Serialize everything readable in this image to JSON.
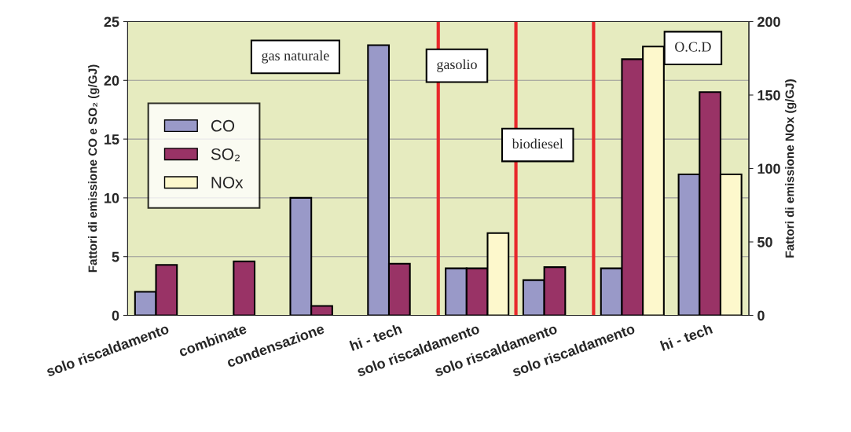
{
  "chart_data": {
    "type": "bar",
    "categories": [
      "solo riscaldamento",
      "combinate",
      "condensazione",
      "hi - tech",
      "solo riscaldamento",
      "solo riscaldamento",
      "solo riscaldamento",
      "hi - tech"
    ],
    "series": [
      {
        "name": "CO",
        "color": "#9999c8",
        "values": [
          2.0,
          null,
          10,
          23,
          4,
          3,
          4,
          12
        ]
      },
      {
        "name": "SO₂",
        "color": "#993366",
        "values": [
          4.3,
          4.6,
          0.8,
          4.4,
          4,
          4.1,
          21.8,
          19
        ]
      },
      {
        "name": "NOx",
        "color": "#fdf8cc",
        "axis": "y2",
        "values": [
          null,
          null,
          null,
          null,
          56,
          null,
          183,
          96
        ]
      }
    ],
    "ylabel": "Fattori di emissione CO e SO₂ (g/GJ)",
    "y2label": "Fattori di emissione NOx (g/GJ)",
    "ylim": [
      0,
      25
    ],
    "yticks": [
      0,
      5,
      10,
      15,
      20,
      25
    ],
    "y2lim": [
      0,
      200
    ],
    "y2ticks": [
      0,
      50,
      100,
      150,
      200
    ],
    "grid": "y",
    "legend": "top left",
    "annotations": [
      "gas naturale",
      "gasolio",
      "biodiesel",
      "O.C.D"
    ]
  }
}
